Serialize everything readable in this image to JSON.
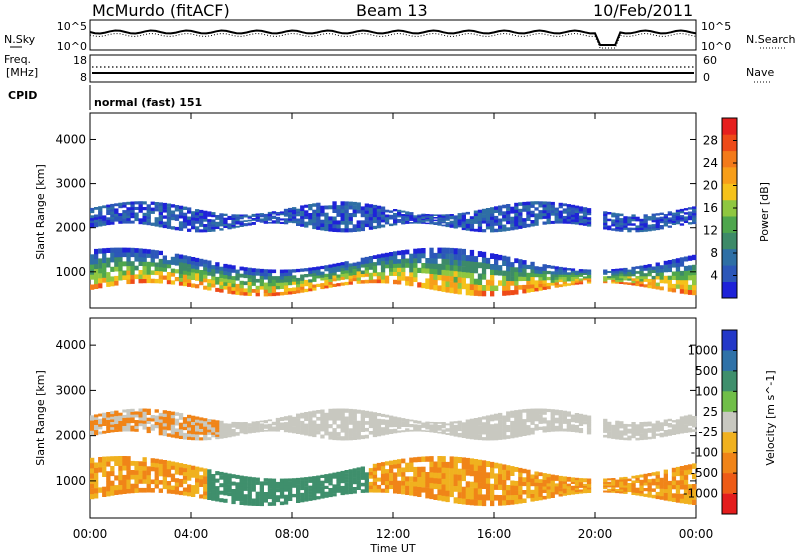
{
  "header": {
    "station": "McMurdo (fitACF)",
    "beam": "Beam 13",
    "date": "10/Feb/2011"
  },
  "noise_panel": {
    "left_label": "N.Sky",
    "right_label": "N.Search",
    "y_ticks_left": [
      "10^5",
      "10^0"
    ],
    "y_ticks_right": [
      "10^5",
      "10^0"
    ]
  },
  "freq_panel": {
    "left_label_1": "Freq.",
    "left_label_2": "[MHz]",
    "right_label": "Nave",
    "y_ticks_left": [
      "18",
      "8"
    ],
    "y_ticks_right": [
      "60",
      "0"
    ]
  },
  "cpid_panel": {
    "label": "CPID",
    "value": "normal (fast) 151"
  },
  "legend_styles": {
    "n_search_line": "dotted",
    "nave_line": "dotted"
  },
  "chart_data": [
    {
      "type": "heatmap",
      "name": "power",
      "ylabel": "Slant Range [km]",
      "y_ticks": [
        "1000",
        "2000",
        "3000",
        "4000"
      ],
      "ylim_km": [
        180,
        4600
      ],
      "colorbar_label": "Power [dB]",
      "colorbar_ticks": [
        "4",
        "8",
        "12",
        "16",
        "20",
        "24",
        "28"
      ],
      "colorbar_colors": [
        "#1e22d8",
        "#2c57b9",
        "#2e6fa5",
        "#3d8a68",
        "#4ea64d",
        "#8fc740",
        "#f5c21b",
        "#f79e19",
        "#f37a1a",
        "#ee4a18",
        "#e61f1e"
      ],
      "x_ticks": [
        "00:00",
        "04:00",
        "08:00",
        "12:00",
        "16:00",
        "20:00",
        "00:00"
      ],
      "xlabel": "Time UT",
      "data_gap_hours": [
        19.8,
        20.3
      ]
    },
    {
      "type": "heatmap",
      "name": "velocity",
      "ylabel": "Slant Range [km]",
      "y_ticks": [
        "1000",
        "2000",
        "3000",
        "4000"
      ],
      "ylim_km": [
        180,
        4600
      ],
      "colorbar_label": "Velocity [m s^-1]",
      "colorbar_ticks": [
        "1000",
        "500",
        "100",
        "25",
        "-25",
        "-100",
        "-500",
        "-1000"
      ],
      "colorbar_colors": [
        "#2338c8",
        "#2f72a8",
        "#3f8f6c",
        "#70be48",
        "#c8c8c0",
        "#f0b11f",
        "#f08418",
        "#ee5b16",
        "#e41d1d"
      ],
      "x_ticks": [
        "00:00",
        "04:00",
        "08:00",
        "12:00",
        "16:00",
        "20:00",
        "00:00"
      ],
      "xlabel": "Time UT",
      "data_gap_hours": [
        19.8,
        20.3
      ]
    }
  ]
}
